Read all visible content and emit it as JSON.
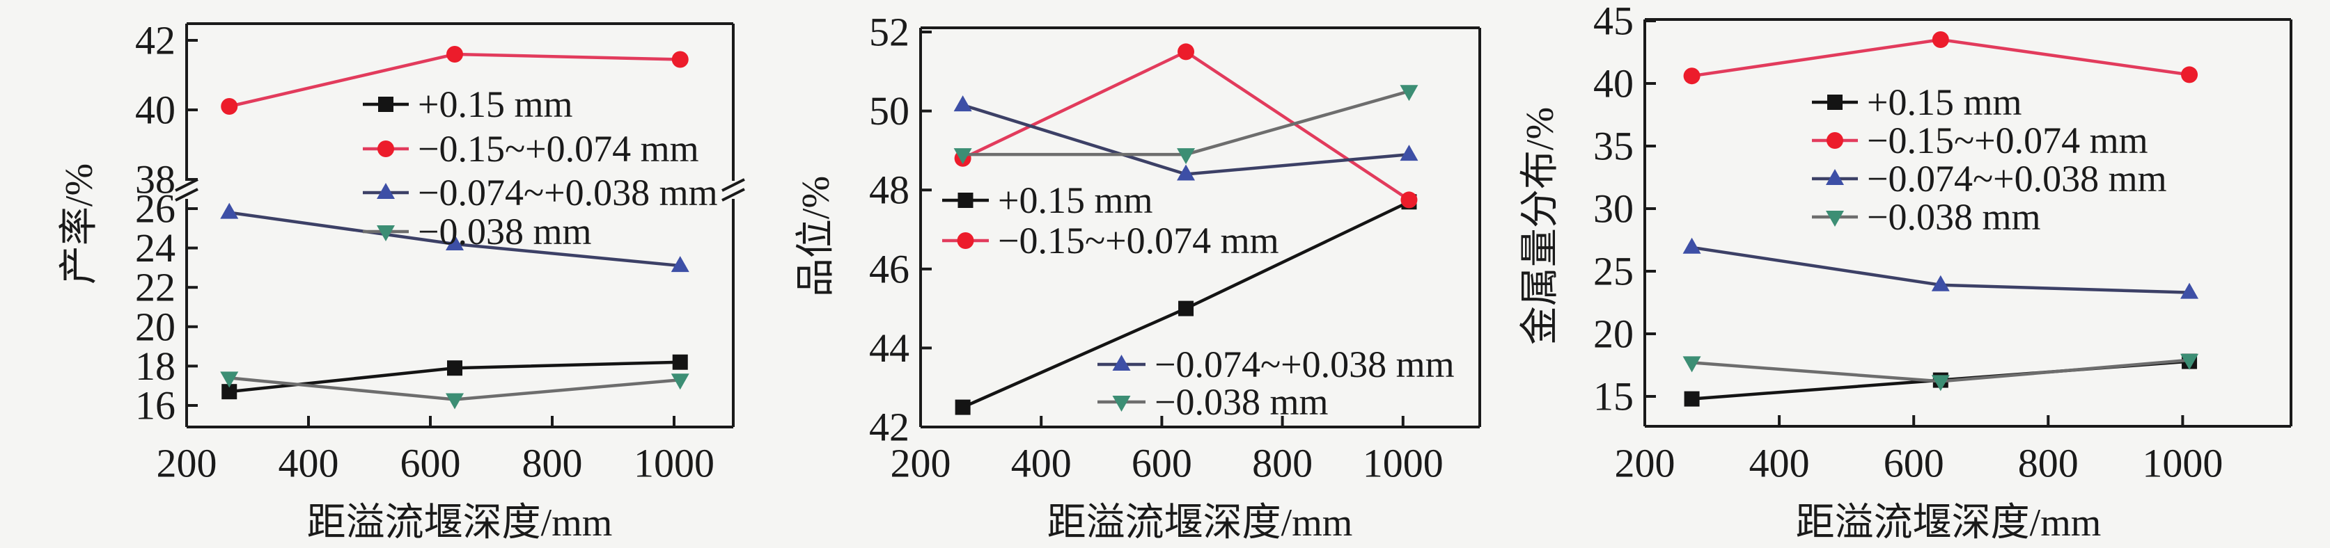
{
  "page": {
    "background": "#f5f5f3",
    "text_color": "#1a1a1a",
    "axis_color": "#1a1a1a"
  },
  "chart_data": [
    {
      "type": "line",
      "title": "",
      "ylabel": "产率/%",
      "xlabel": "距溢流堰深度/mm",
      "x": [
        270,
        640,
        1010
      ],
      "x_ticks": [
        200,
        400,
        600,
        800,
        1000
      ],
      "x_range": [
        200,
        1100
      ],
      "grid": false,
      "y_axis_broken": true,
      "y_lower": {
        "range": [
          14.9,
          27.0
        ],
        "ticks": [
          16,
          18,
          20,
          22,
          24,
          26
        ]
      },
      "y_upper": {
        "range": [
          37.5,
          42.5
        ],
        "ticks": [
          38,
          40,
          42
        ]
      },
      "legend_position": "inside-upper-middle",
      "series": [
        {
          "name": "+0.15 mm",
          "marker": "square",
          "line_color": "#141414",
          "marker_color": "#141414",
          "values": [
            16.7,
            17.9,
            18.2
          ]
        },
        {
          "name": "−0.15~+0.074 mm",
          "marker": "circle",
          "line_color": "#e23b5c",
          "marker_color": "#ec1c2b",
          "values": [
            40.1,
            41.6,
            41.45
          ]
        },
        {
          "name": "−0.074~+0.038 mm",
          "marker": "triangle-up",
          "line_color": "#3c4066",
          "marker_color": "#3d4fa6",
          "values": [
            25.8,
            24.2,
            23.1
          ]
        },
        {
          "name": "−0.038 mm",
          "marker": "triangle-down",
          "line_color": "#6d6d6d",
          "marker_color": "#3c8e74",
          "values": [
            17.4,
            16.3,
            17.3
          ]
        }
      ]
    },
    {
      "type": "line",
      "title": "",
      "ylabel": "品位/%",
      "xlabel": "距溢流堰深度/mm",
      "x": [
        270,
        640,
        1010
      ],
      "x_ticks": [
        200,
        400,
        600,
        800,
        1000
      ],
      "x_range": [
        200,
        1130
      ],
      "grid": false,
      "y_axis_broken": false,
      "y_ticks": [
        42,
        44,
        46,
        48,
        50,
        52
      ],
      "y_range": [
        42,
        52.1
      ],
      "legend_position": "inside-split-two-groups",
      "series": [
        {
          "name": "+0.15 mm",
          "marker": "square",
          "line_color": "#141414",
          "marker_color": "#141414",
          "values": [
            42.5,
            45.0,
            47.7
          ]
        },
        {
          "name": "−0.15~+0.074 mm",
          "marker": "circle",
          "line_color": "#e23b5c",
          "marker_color": "#ec1c2b",
          "values": [
            48.8,
            51.5,
            47.75
          ]
        },
        {
          "name": "−0.074~+0.038 mm",
          "marker": "triangle-up",
          "line_color": "#3c4066",
          "marker_color": "#3d4fa6",
          "values": [
            50.15,
            48.4,
            48.9
          ]
        },
        {
          "name": "−0.038 mm",
          "marker": "triangle-down",
          "line_color": "#6d6d6d",
          "marker_color": "#3c8e74",
          "values": [
            48.9,
            48.9,
            50.5
          ]
        }
      ]
    },
    {
      "type": "line",
      "title": "",
      "ylabel": "金属量分布/%",
      "xlabel": "距溢流堰深度/mm",
      "x": [
        270,
        640,
        1010
      ],
      "x_ticks": [
        200,
        400,
        600,
        800,
        1000
      ],
      "x_range": [
        200,
        1160
      ],
      "grid": false,
      "y_axis_broken": false,
      "y_ticks": [
        15,
        20,
        25,
        30,
        35,
        40,
        45
      ],
      "y_range": [
        12.6,
        45.3
      ],
      "legend_position": "inside-upper-middle",
      "series": [
        {
          "name": "+0.15 mm",
          "marker": "square",
          "line_color": "#141414",
          "marker_color": "#141414",
          "values": [
            14.8,
            16.3,
            17.8
          ]
        },
        {
          "name": "−0.15~+0.074 mm",
          "marker": "circle",
          "line_color": "#e23b5c",
          "marker_color": "#ec1c2b",
          "values": [
            40.6,
            43.5,
            40.7
          ]
        },
        {
          "name": "−0.074~+0.038 mm",
          "marker": "triangle-up",
          "line_color": "#3c4066",
          "marker_color": "#3d4fa6",
          "values": [
            26.9,
            23.9,
            23.3
          ]
        },
        {
          "name": "−0.038 mm",
          "marker": "triangle-down",
          "line_color": "#6d6d6d",
          "marker_color": "#3c8e74",
          "values": [
            17.7,
            16.2,
            17.9
          ]
        }
      ]
    }
  ]
}
